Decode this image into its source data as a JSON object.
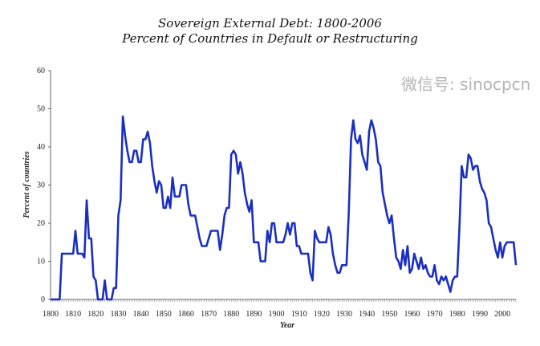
{
  "chart_data": {
    "type": "line",
    "title": "Sovereign External Debt: 1800-2006",
    "subtitle": "Percent of Countries in Default or Restructuring",
    "xlabel": "Year",
    "ylabel": "Percent of countries",
    "xlim": [
      1800,
      2006
    ],
    "ylim": [
      0,
      60
    ],
    "xticks": [
      1800,
      1810,
      1820,
      1830,
      1840,
      1850,
      1860,
      1870,
      1880,
      1890,
      1900,
      1910,
      1920,
      1930,
      1940,
      1950,
      1960,
      1970,
      1980,
      1990,
      2000
    ],
    "yticks": [
      0,
      10,
      20,
      30,
      40,
      50,
      60
    ],
    "grid": false,
    "series": [
      {
        "name": "Percent of countries in default or restructuring",
        "color": "#1a2fc0",
        "x_start": 1800,
        "values": [
          0,
          0,
          0,
          0,
          0,
          12,
          12,
          12,
          12,
          12,
          12,
          18,
          12,
          12,
          12,
          11,
          26,
          16,
          16,
          6,
          5,
          0,
          0,
          0,
          5,
          0,
          0,
          0,
          3,
          3,
          22,
          26,
          48,
          43,
          39,
          36,
          36,
          39,
          39,
          36,
          36,
          42,
          42,
          44,
          41,
          35,
          31,
          28,
          31,
          30,
          24,
          24,
          27,
          24,
          32,
          27,
          27,
          27,
          30,
          30,
          30,
          25,
          22,
          22,
          22,
          19,
          16,
          14,
          14,
          14,
          16,
          18,
          18,
          18,
          18,
          13,
          17,
          22,
          24,
          24,
          38,
          39,
          38,
          33,
          36,
          33,
          28,
          25,
          23,
          26,
          15,
          15,
          15,
          10,
          10,
          10,
          18,
          15,
          20,
          20,
          15,
          15,
          15,
          15,
          17,
          20,
          17,
          20,
          20,
          14,
          14,
          12,
          12,
          12,
          12,
          7,
          5,
          18,
          16,
          15,
          15,
          15,
          15,
          19,
          17,
          12,
          9,
          7,
          7,
          9,
          9,
          9,
          23,
          42,
          47,
          42,
          41,
          43,
          38,
          36,
          34,
          44,
          47,
          45,
          42,
          36,
          35,
          28,
          25,
          22,
          20,
          22,
          16,
          11,
          10,
          8,
          13,
          9,
          14,
          7,
          8,
          12,
          10,
          8,
          11,
          8,
          9,
          7,
          6,
          6,
          9,
          5,
          4,
          6,
          5,
          6,
          4,
          2,
          5,
          6,
          6,
          19,
          35,
          32,
          32,
          38,
          37,
          34,
          35,
          35,
          31,
          29,
          28,
          26,
          20,
          19,
          16,
          13,
          11,
          15,
          11,
          14,
          15,
          15,
          15,
          15,
          9
        ]
      }
    ],
    "watermark": "微信号: sinocpcn"
  }
}
